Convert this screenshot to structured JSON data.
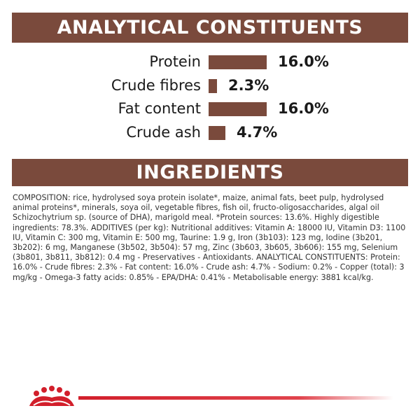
{
  "sections": {
    "analytical_title": "ANALYTICAL CONSTITUENTS",
    "ingredients_title": "INGREDIENTS"
  },
  "constituents": [
    {
      "label": "Protein",
      "value": "16.0%",
      "fraction": 0.16
    },
    {
      "label": "Crude fibres",
      "value": "2.3%",
      "fraction": 0.023
    },
    {
      "label": "Fat content",
      "value": "16.0%",
      "fraction": 0.16
    },
    {
      "label": "Crude ash",
      "value": "4.7%",
      "fraction": 0.047
    }
  ],
  "ingredients_text": "COMPOSITION: rice, hydrolysed soya protein isolate*, maize, animal fats, beet pulp, hydrolysed animal proteins*, minerals, soya oil, vegetable fibres, fish oil, fructo-oligosaccharides, algal oil Schizochytrium sp. (source of DHA), marigold meal. *Protein sources: 13.6%. Highly digestible ingredients: 78.3%. ADDITIVES (per kg): Nutritional additives: Vitamin A: 18000 IU, Vitamin D3: 1100 IU, Vitamin C: 300 mg, Vitamin E: 500 mg, Taurine: 1.9 g, Iron (3b103): 123 mg, Iodine (3b201, 3b202): 6 mg, Manganese (3b502, 3b504): 57 mg, Zinc (3b603, 3b605, 3b606): 155 mg, Selenium (3b801, 3b811, 3b812): 0.4 mg - Preservatives - Antioxidants. ANALYTICAL CONSTITUENTS: Protein: 16.0% - Crude fibres: 2.3% - Fat content: 16.0% - Crude ash: 4.7% - Sodium: 0.2% - Copper (total): 3 mg/kg - Omega-3 fatty acids: 0.85% - EPA/DHA: 0.41% - Metabolisable energy: 3881 kcal/kg.",
  "colors": {
    "band": "#7a4a3c",
    "brand_red": "#d21f2b"
  },
  "logo": {
    "icon": "royal-canin-crown-icon"
  }
}
